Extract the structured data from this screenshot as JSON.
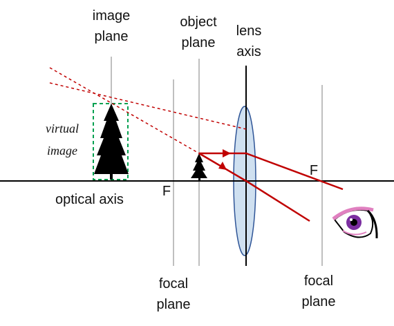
{
  "labels": {
    "image_plane": [
      "image",
      "plane"
    ],
    "object_plane": [
      "object",
      "plane"
    ],
    "lens_axis": [
      "lens",
      "axis"
    ],
    "virtual_image": [
      "virtual",
      "image"
    ],
    "optical_axis": "optical axis",
    "focal_left": "F",
    "focal_right": "F",
    "focal_plane_left": [
      "focal",
      "plane"
    ],
    "focal_plane_right": [
      "focal",
      "plane"
    ]
  },
  "colors": {
    "ray": "#c00000",
    "lens_fill": "#cfe0f0",
    "lens_stroke": "#2f5597",
    "virtual_box": "#00a050",
    "plane_line": "#bfbfbf",
    "axis_line": "#000000",
    "tree": "#000000",
    "eye_iris": "#7b2ea0",
    "eye_lid": "#e080c0"
  },
  "icons": [
    "tree-object",
    "tree-virtual-image",
    "eye-icon"
  ]
}
